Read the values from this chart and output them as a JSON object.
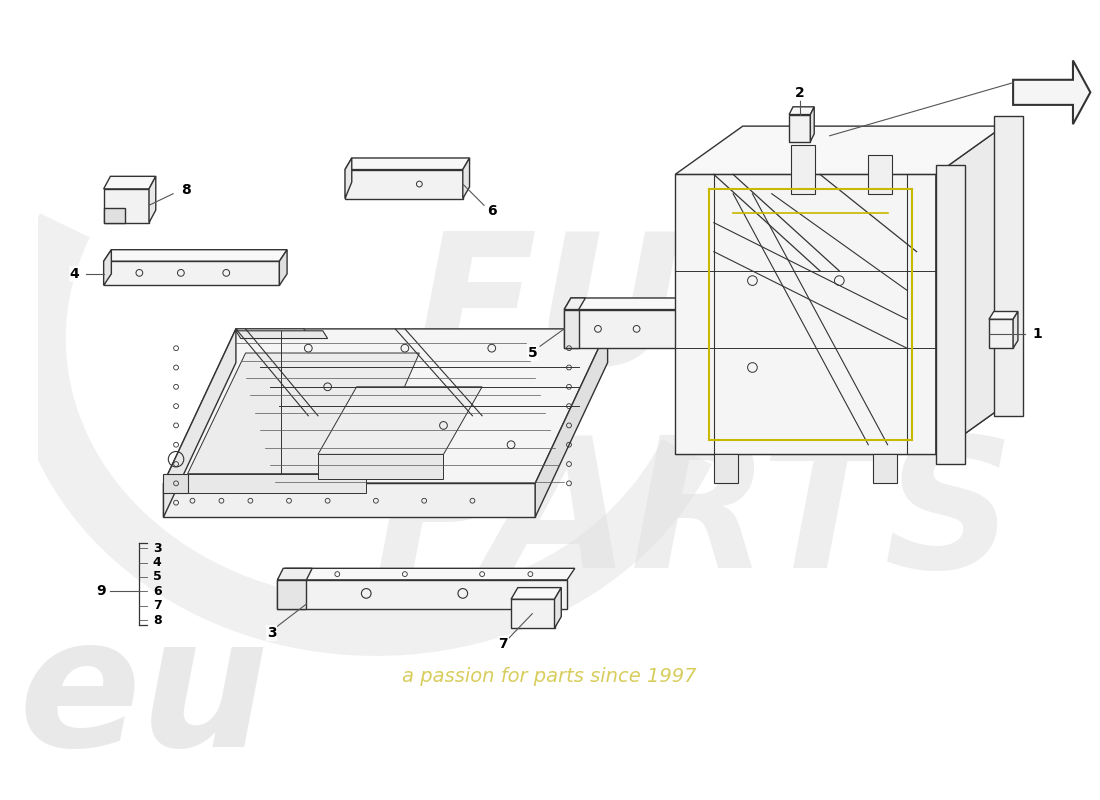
{
  "bg_color": "#ffffff",
  "watermark_text": "a passion for parts since 1997",
  "watermark_color": "#d4c84a",
  "ec": "#333333",
  "lw": 1.0,
  "label_fontsize": 10,
  "label_color": "#000000"
}
